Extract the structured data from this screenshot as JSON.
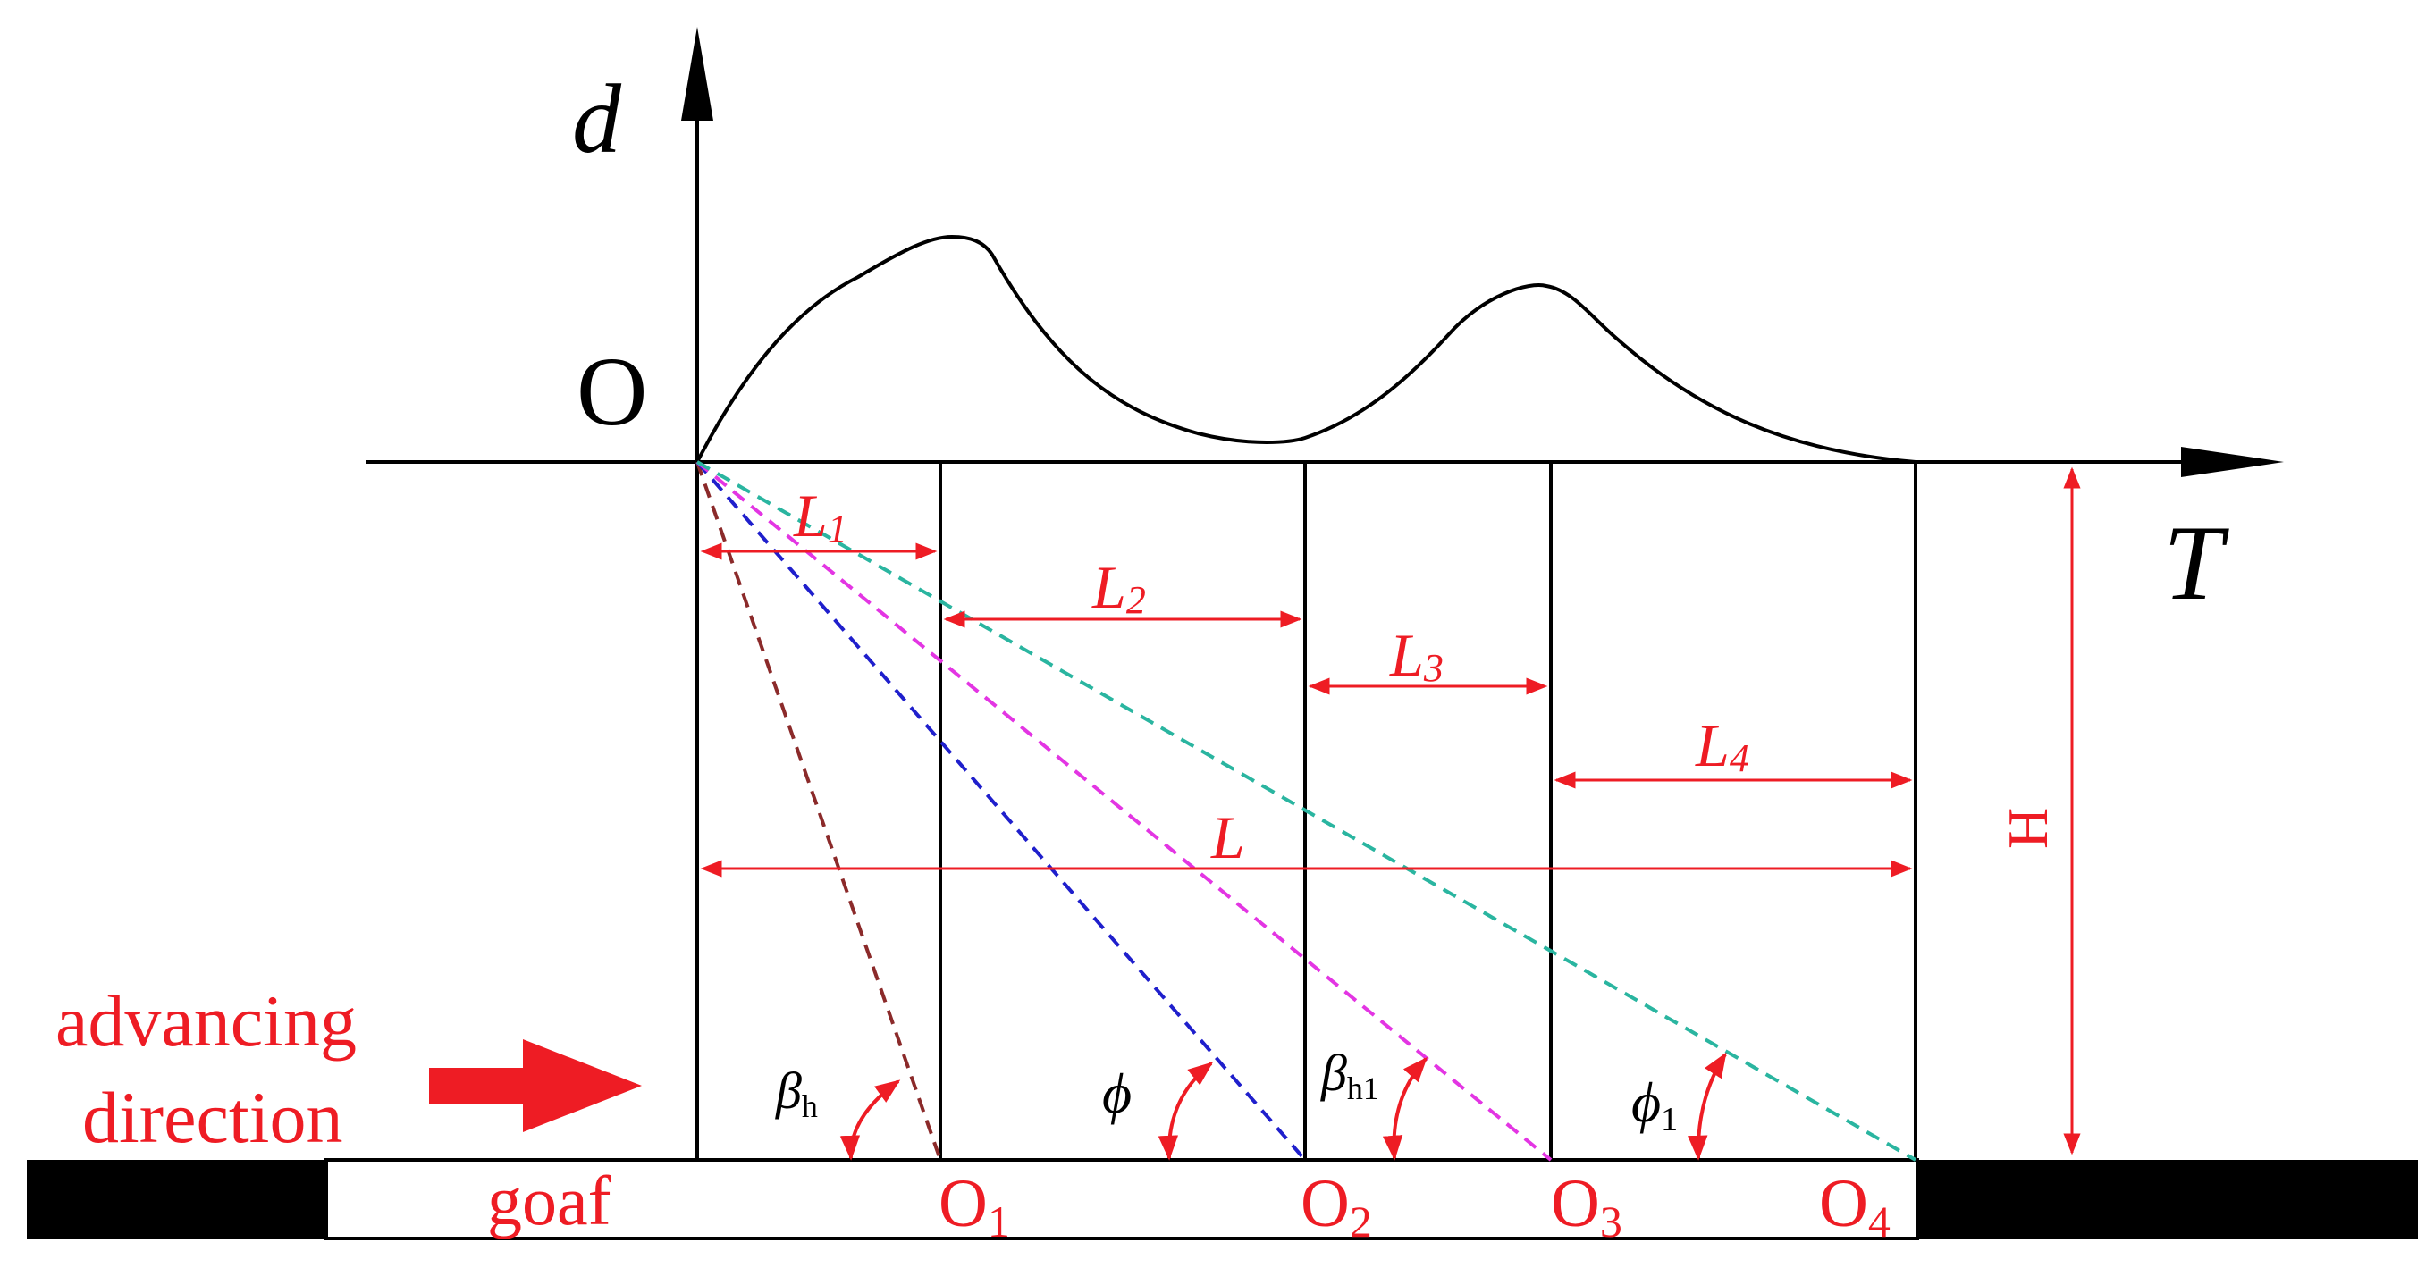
{
  "colors": {
    "black": "#000000",
    "red": "#ee1c24",
    "brown": "#8b2a2a",
    "blue": "#1f1fcc",
    "magenta": "#e335e3",
    "teal": "#2ab5a0"
  },
  "axes": {
    "y_label": "d",
    "x_label": "T",
    "origin_label": "O"
  },
  "segments": {
    "L1": {
      "main": "L",
      "sub": "1"
    },
    "L2": {
      "main": "L",
      "sub": "2"
    },
    "L3": {
      "main": "L",
      "sub": "3"
    },
    "L4": {
      "main": "L",
      "sub": "4"
    },
    "L": {
      "main": "L"
    },
    "H": {
      "main": "H"
    }
  },
  "angles": {
    "beta_h": {
      "main": "β",
      "sub": "h"
    },
    "phi": {
      "main": "ϕ"
    },
    "beta_h1": {
      "main": "β",
      "sub": "h1"
    },
    "phi_1": {
      "main": "ϕ",
      "sub": "1"
    }
  },
  "points": {
    "O1": {
      "main": "O",
      "sub": "1"
    },
    "O2": {
      "main": "O",
      "sub": "2"
    },
    "O3": {
      "main": "O",
      "sub": "3"
    },
    "O4": {
      "main": "O",
      "sub": "4"
    }
  },
  "labels": {
    "advancing_line1": "advancing",
    "advancing_line2": "direction",
    "goaf": "goaf"
  }
}
